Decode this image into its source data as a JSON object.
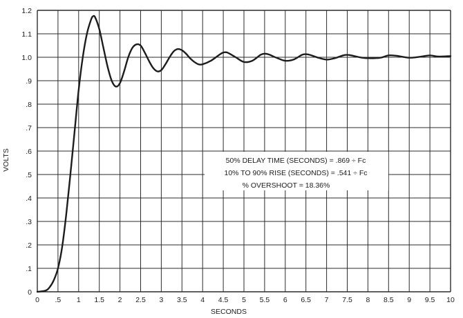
{
  "chart_data": {
    "type": "line",
    "xlabel": "SECONDS",
    "ylabel": "VOLTS",
    "xlim": [
      0,
      10
    ],
    "ylim": [
      0,
      1.2
    ],
    "grid": true,
    "x_ticks": [
      "0",
      ".5",
      "1",
      "1.5",
      "2",
      "2.5",
      "3",
      "3.5",
      "4",
      "4.5",
      "5",
      "5.5",
      "6",
      "6.5",
      "7",
      "7.5",
      "8",
      "8.5",
      "9",
      "9.5",
      "10"
    ],
    "y_ticks": [
      "0",
      ".1",
      ".2",
      ".3",
      ".4",
      ".5",
      ".6",
      ".7",
      ".8",
      ".9",
      "1.0",
      "1.1",
      "1.2"
    ],
    "annotations": [
      "50% DELAY TIME (SECONDS) = .869 ÷ Fc",
      "10% TO 90% RISE (SECONDS) = .541 ÷ Fc",
      "% OVERSHOOT = 18.36%"
    ],
    "series": [
      {
        "color": "#1c1c1c",
        "x": [
          0,
          0.2,
          0.3,
          0.4,
          0.5,
          0.6,
          0.7,
          0.8,
          0.9,
          1.0,
          1.1,
          1.2,
          1.3,
          1.35,
          1.4,
          1.5,
          1.6,
          1.7,
          1.8,
          1.9,
          2.0,
          2.1,
          2.2,
          2.3,
          2.4,
          2.5,
          2.6,
          2.7,
          2.8,
          2.9,
          3.0,
          3.1,
          3.2,
          3.3,
          3.4,
          3.5,
          3.6,
          3.7,
          3.8,
          3.9,
          4.0,
          4.2,
          4.4,
          4.5,
          4.6,
          4.8,
          5.0,
          5.2,
          5.4,
          5.5,
          5.6,
          5.8,
          6.0,
          6.2,
          6.4,
          6.5,
          6.6,
          6.8,
          7.0,
          7.2,
          7.4,
          7.5,
          7.6,
          7.8,
          8.0,
          8.3,
          8.5,
          8.7,
          9.0,
          9.3,
          9.5,
          9.7,
          10.0
        ],
        "y": [
          0,
          0.005,
          0.02,
          0.05,
          0.1,
          0.19,
          0.33,
          0.5,
          0.68,
          0.86,
          1.0,
          1.1,
          1.16,
          1.175,
          1.17,
          1.12,
          1.04,
          0.96,
          0.9,
          0.875,
          0.89,
          0.94,
          1.0,
          1.04,
          1.055,
          1.05,
          1.02,
          0.985,
          0.955,
          0.94,
          0.945,
          0.97,
          1.0,
          1.025,
          1.035,
          1.03,
          1.015,
          0.995,
          0.98,
          0.97,
          0.97,
          0.985,
          1.01,
          1.02,
          1.02,
          1.0,
          0.98,
          0.985,
          1.01,
          1.015,
          1.012,
          0.997,
          0.985,
          0.99,
          1.01,
          1.013,
          1.01,
          0.998,
          0.99,
          0.996,
          1.008,
          1.01,
          1.008,
          1.0,
          0.996,
          0.998,
          1.008,
          1.006,
          0.998,
          1.003,
          1.008,
          1.003,
          1.005
        ]
      }
    ]
  }
}
